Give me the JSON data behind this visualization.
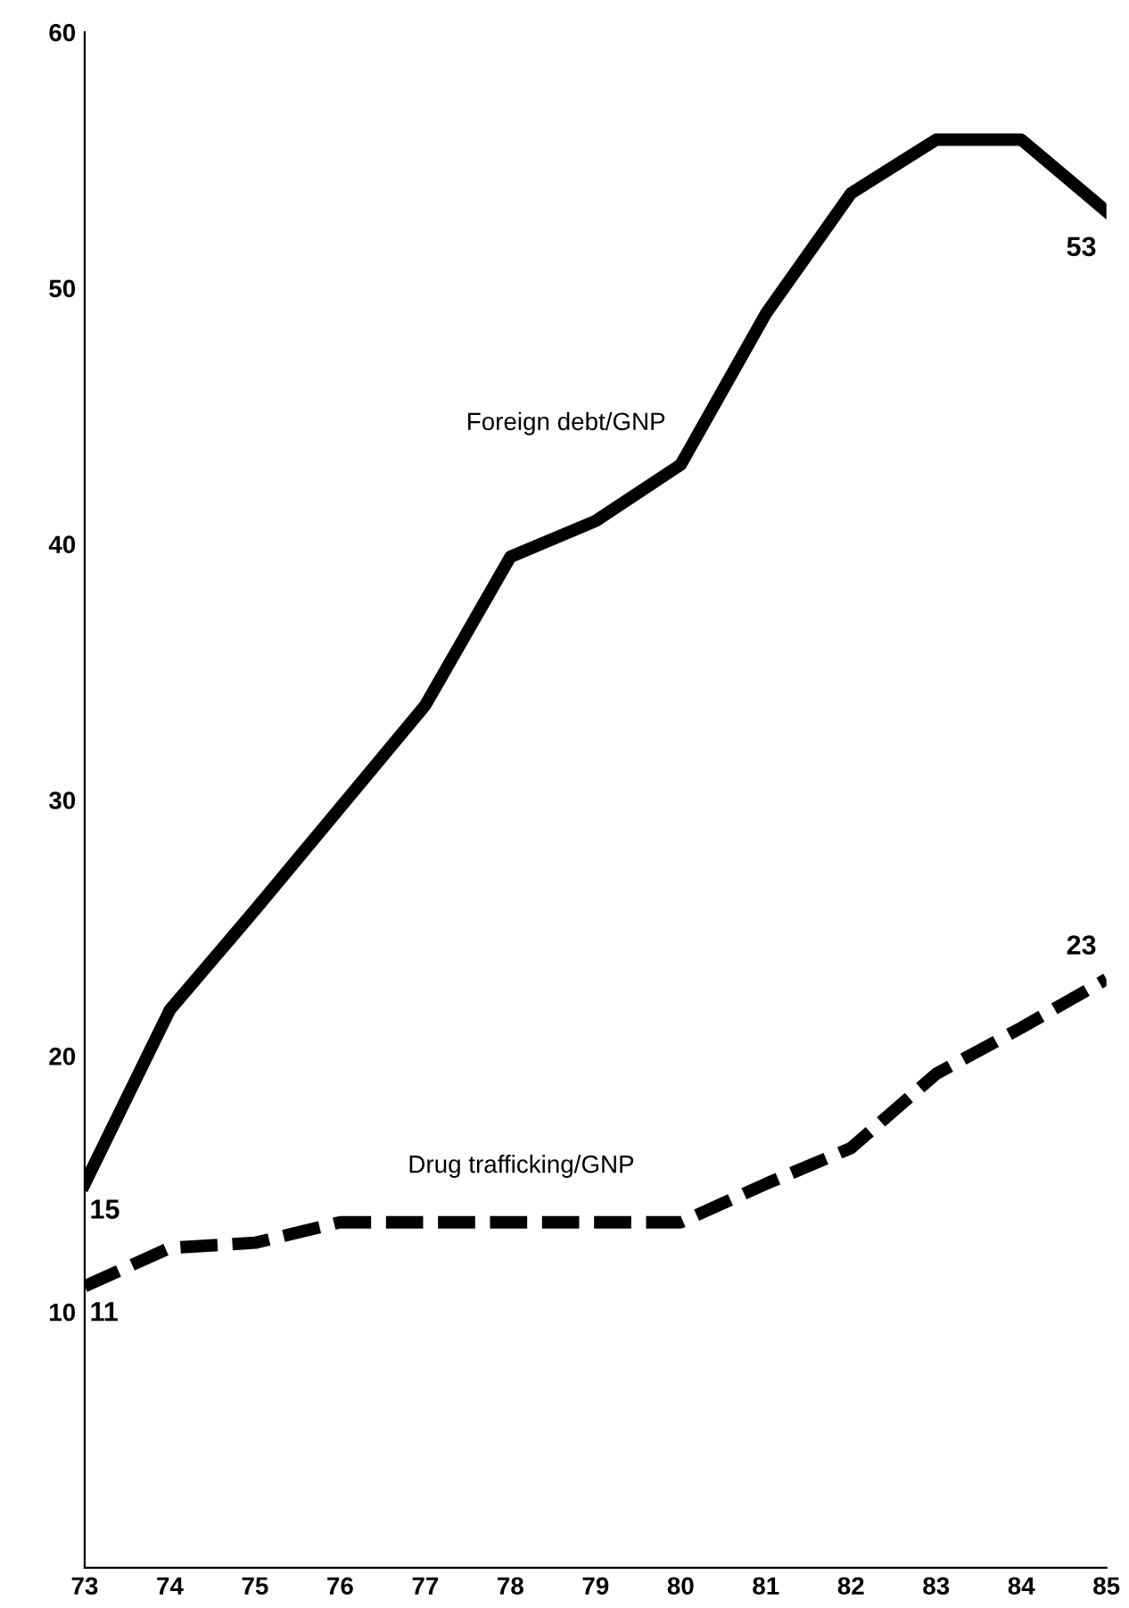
{
  "chart_data": {
    "type": "line",
    "x": [
      73,
      74,
      75,
      76,
      77,
      78,
      79,
      80,
      81,
      82,
      83,
      84,
      85
    ],
    "series": [
      {
        "name": "Foreign debt/GNP",
        "color": "#000000",
        "line_style": "solid",
        "values": [
          15,
          21.8,
          25.7,
          29.7,
          33.7,
          39.5,
          40.9,
          43.1,
          49.0,
          53.7,
          55.8,
          55.8,
          53
        ],
        "value_labels": [
          "15",
          null,
          null,
          null,
          null,
          null,
          null,
          null,
          null,
          null,
          null,
          null,
          "53"
        ]
      },
      {
        "name": "Drug trafficking/GNP",
        "color": "#000000",
        "line_style": "dashed",
        "values": [
          11,
          12.5,
          12.7,
          13.5,
          13.5,
          13.5,
          13.5,
          13.5,
          15.0,
          16.4,
          19.3,
          21.1,
          23
        ],
        "value_labels": [
          "11",
          null,
          null,
          null,
          null,
          null,
          null,
          null,
          null,
          null,
          null,
          null,
          "23"
        ]
      }
    ],
    "xlim": [
      73,
      85
    ],
    "xticks": [
      73,
      74,
      75,
      76,
      77,
      78,
      79,
      80,
      81,
      82,
      83,
      84,
      85
    ],
    "ylim": [
      0,
      60
    ],
    "yticks": [
      10,
      20,
      30,
      40,
      50,
      60
    ],
    "grid": false,
    "legend": false
  }
}
